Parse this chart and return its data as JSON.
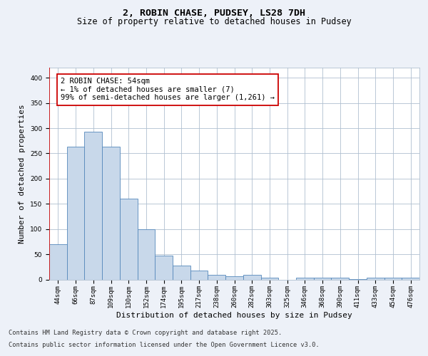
{
  "title_line1": "2, ROBIN CHASE, PUDSEY, LS28 7DH",
  "title_line2": "Size of property relative to detached houses in Pudsey",
  "xlabel": "Distribution of detached houses by size in Pudsey",
  "ylabel": "Number of detached properties",
  "categories": [
    "44sqm",
    "66sqm",
    "87sqm",
    "109sqm",
    "130sqm",
    "152sqm",
    "174sqm",
    "195sqm",
    "217sqm",
    "238sqm",
    "260sqm",
    "282sqm",
    "303sqm",
    "325sqm",
    "346sqm",
    "368sqm",
    "390sqm",
    "411sqm",
    "433sqm",
    "454sqm",
    "476sqm"
  ],
  "values": [
    70,
    263,
    293,
    263,
    160,
    99,
    47,
    27,
    17,
    9,
    7,
    9,
    3,
    0,
    3,
    4,
    4,
    1,
    3,
    4,
    4
  ],
  "bar_color": "#c8d8ea",
  "bar_edge_color": "#5588bb",
  "annotation_box_color": "#cc0000",
  "annotation_text_line1": "2 ROBIN CHASE: 54sqm",
  "annotation_text_line2": "← 1% of detached houses are smaller (7)",
  "annotation_text_line3": "99% of semi-detached houses are larger (1,261) →",
  "ylim": [
    0,
    420
  ],
  "yticks": [
    0,
    50,
    100,
    150,
    200,
    250,
    300,
    350,
    400
  ],
  "bg_color": "#edf1f8",
  "plot_bg_color": "#ffffff",
  "grid_color": "#b0bfd0",
  "footer_line1": "Contains HM Land Registry data © Crown copyright and database right 2025.",
  "footer_line2": "Contains public sector information licensed under the Open Government Licence v3.0.",
  "title_fontsize": 9.5,
  "subtitle_fontsize": 8.5,
  "axis_label_fontsize": 8,
  "tick_fontsize": 6.5,
  "annotation_fontsize": 7.5,
  "footer_fontsize": 6.2
}
